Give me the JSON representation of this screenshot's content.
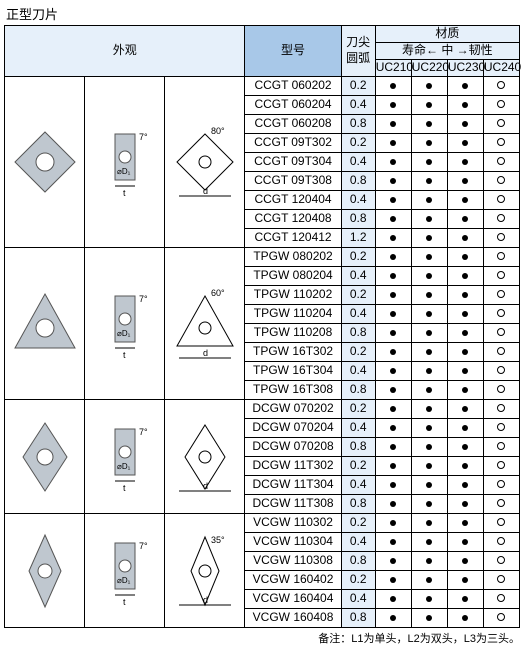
{
  "title": "正型刀片",
  "headers": {
    "appearance": "外观",
    "model": "型号",
    "nose": "刀尖\n圆弧",
    "material": "材质",
    "scale_left": "寿命",
    "scale_mid": "中",
    "scale_right": "韧性",
    "grades": [
      "UC210",
      "UC220",
      "UC230",
      "UC240"
    ]
  },
  "footnote": "备注：L1为单头，L2为双头，L3为三头。",
  "groups": [
    {
      "shape": "C80",
      "angle_label": "80°",
      "rows": [
        {
          "model": "CCGT 060202",
          "nose": "0.2",
          "marks": [
            "dot",
            "dot",
            "dot",
            "circ"
          ]
        },
        {
          "model": "CCGT 060204",
          "nose": "0.4",
          "marks": [
            "dot",
            "dot",
            "dot",
            "circ"
          ]
        },
        {
          "model": "CCGT 060208",
          "nose": "0.8",
          "marks": [
            "dot",
            "dot",
            "dot",
            "circ"
          ]
        }
      ],
      "sub": [
        {
          "model": "CCGT 09T302",
          "nose": "0.2",
          "marks": [
            "dot",
            "dot",
            "dot",
            "circ"
          ]
        },
        {
          "model": "CCGT 09T304",
          "nose": "0.4",
          "marks": [
            "dot",
            "dot",
            "dot",
            "circ"
          ]
        },
        {
          "model": "CCGT 09T308",
          "nose": "0.8",
          "marks": [
            "dot",
            "dot",
            "dot",
            "circ"
          ]
        }
      ],
      "sub2": [
        {
          "model": "CCGT 120404",
          "nose": "0.4",
          "marks": [
            "dot",
            "dot",
            "dot",
            "circ"
          ]
        },
        {
          "model": "CCGT 120408",
          "nose": "0.8",
          "marks": [
            "dot",
            "dot",
            "dot",
            "circ"
          ]
        },
        {
          "model": "CCGT 120412",
          "nose": "1.2",
          "marks": [
            "dot",
            "dot",
            "dot",
            "circ"
          ]
        }
      ]
    },
    {
      "shape": "T60",
      "angle_label": "60°",
      "rows": [
        {
          "model": "TPGW 080202",
          "nose": "0.2",
          "marks": [
            "dot",
            "dot",
            "dot",
            "circ"
          ]
        },
        {
          "model": "TPGW 080204",
          "nose": "0.4",
          "marks": [
            "dot",
            "dot",
            "dot",
            "circ"
          ]
        }
      ],
      "sub": [
        {
          "model": "TPGW 110202",
          "nose": "0.2",
          "marks": [
            "dot",
            "dot",
            "dot",
            "circ"
          ]
        },
        {
          "model": "TPGW 110204",
          "nose": "0.4",
          "marks": [
            "dot",
            "dot",
            "dot",
            "circ"
          ]
        },
        {
          "model": "TPGW 110208",
          "nose": "0.8",
          "marks": [
            "dot",
            "dot",
            "dot",
            "circ"
          ]
        }
      ],
      "sub2": [
        {
          "model": "TPGW 16T302",
          "nose": "0.2",
          "marks": [
            "dot",
            "dot",
            "dot",
            "circ"
          ]
        },
        {
          "model": "TPGW 16T304",
          "nose": "0.4",
          "marks": [
            "dot",
            "dot",
            "dot",
            "circ"
          ]
        },
        {
          "model": "TPGW 16T308",
          "nose": "0.8",
          "marks": [
            "dot",
            "dot",
            "dot",
            "circ"
          ]
        }
      ]
    },
    {
      "shape": "D55",
      "angle_label": "",
      "rows": [
        {
          "model": "DCGW 070202",
          "nose": "0.2",
          "marks": [
            "dot",
            "dot",
            "dot",
            "circ"
          ]
        },
        {
          "model": "DCGW 070204",
          "nose": "0.4",
          "marks": [
            "dot",
            "dot",
            "dot",
            "circ"
          ]
        },
        {
          "model": "DCGW 070208",
          "nose": "0.8",
          "marks": [
            "dot",
            "dot",
            "dot",
            "circ"
          ]
        }
      ],
      "sub": [
        {
          "model": "DCGW 11T302",
          "nose": "0.2",
          "marks": [
            "dot",
            "dot",
            "dot",
            "circ"
          ]
        },
        {
          "model": "DCGW 11T304",
          "nose": "0.4",
          "marks": [
            "dot",
            "dot",
            "dot",
            "circ"
          ]
        },
        {
          "model": "DCGW 11T308",
          "nose": "0.8",
          "marks": [
            "dot",
            "dot",
            "dot",
            "circ"
          ]
        }
      ]
    },
    {
      "shape": "V35",
      "angle_label": "35°",
      "rows": [
        {
          "model": "VCGW 110302",
          "nose": "0.2",
          "marks": [
            "dot",
            "dot",
            "dot",
            "circ"
          ]
        },
        {
          "model": "VCGW 110304",
          "nose": "0.4",
          "marks": [
            "dot",
            "dot",
            "dot",
            "circ"
          ]
        },
        {
          "model": "VCGW 110308",
          "nose": "0.8",
          "marks": [
            "dot",
            "dot",
            "dot",
            "circ"
          ]
        }
      ],
      "sub": [
        {
          "model": "VCGW 160402",
          "nose": "0.2",
          "marks": [
            "dot",
            "dot",
            "dot",
            "circ"
          ]
        },
        {
          "model": "VCGW 160404",
          "nose": "0.4",
          "marks": [
            "dot",
            "dot",
            "dot",
            "circ"
          ]
        },
        {
          "model": "VCGW 160408",
          "nose": "0.8",
          "marks": [
            "dot",
            "dot",
            "dot",
            "circ"
          ]
        }
      ]
    }
  ],
  "colors": {
    "header_light": "#e6f0fa",
    "header_dark": "#a8c8e8",
    "border": "#000000",
    "insert_fill": "#bfc7cf",
    "insert_stroke": "#555"
  },
  "col_widths": {
    "appearance": 240,
    "model": 96,
    "nose": 34,
    "grade": 36
  }
}
